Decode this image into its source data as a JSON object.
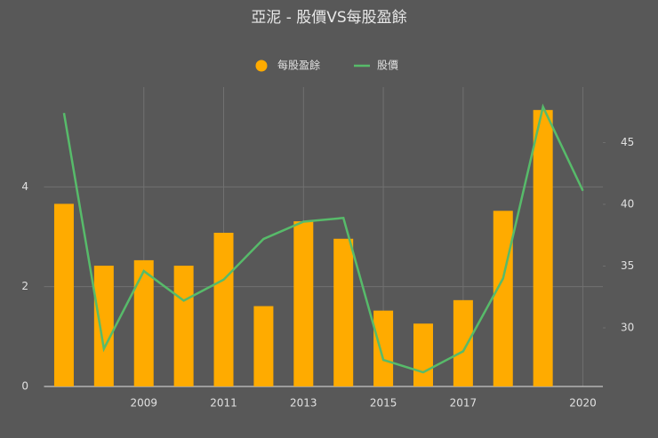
{
  "chart_data": {
    "type": "bar_line",
    "title": "亞泥 - 股價VS每股盈餘",
    "categories": [
      null,
      null,
      "2009",
      null,
      "2011",
      null,
      "2013",
      null,
      "2015",
      null,
      "2017",
      null,
      null,
      "2020"
    ],
    "series": [
      {
        "name": "每股盈餘",
        "type": "bar",
        "color": "#ffab00",
        "values": [
          3.66,
          2.42,
          2.53,
          2.42,
          3.08,
          1.61,
          3.31,
          2.96,
          1.52,
          1.26,
          1.73,
          3.52,
          5.54,
          null
        ]
      },
      {
        "name": "股價",
        "type": "line",
        "axis": "y2",
        "color": "#57bb6a",
        "values": [
          47.4,
          28.3,
          34.6,
          32.2,
          33.9,
          37.2,
          38.6,
          38.9,
          27.4,
          26.4,
          28.1,
          34.0,
          47.9,
          41.1
        ]
      }
    ],
    "ylim": [
      0,
      6
    ],
    "yticks": [
      0,
      2,
      4
    ],
    "y2lim": [
      25.25,
      49.5
    ],
    "y2ticks": [
      30,
      35,
      40,
      45
    ],
    "grid": true,
    "legend": "top"
  }
}
